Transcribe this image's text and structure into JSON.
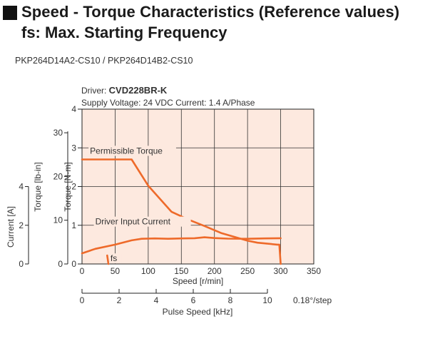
{
  "header": {
    "title": "Speed - Torque Characteristics (Reference values)",
    "subtitle": "fs: Max. Starting Frequency"
  },
  "model": "PKP264D14A2-CS10 / PKP264D14B2-CS10",
  "chart_data": {
    "type": "line",
    "driver_label": "Driver: ",
    "driver_name": "CVD228BR-K",
    "supply": "Supply Voltage: 24 VDC  Current: 1.4 A/Phase",
    "x": {
      "label": "Speed [r/min]",
      "range": [
        0,
        350
      ],
      "ticks": [
        0,
        50,
        100,
        150,
        200,
        250,
        300,
        350
      ]
    },
    "x2": {
      "label": "Pulse Speed [kHz]",
      "range": [
        0,
        12.5
      ],
      "ticks": [
        0,
        2,
        4,
        6,
        8,
        10
      ],
      "step_note": "0.18°/step"
    },
    "y_nm": {
      "label": "Torque [N·m]",
      "range": [
        0,
        4
      ],
      "ticks": [
        0,
        1,
        2,
        3,
        4
      ]
    },
    "y_lbin": {
      "label": "Torque [lb-in]",
      "range": [
        0,
        35.4
      ],
      "ticks": [
        0,
        10,
        20,
        30
      ]
    },
    "y_current": {
      "label": "Current [A]",
      "range": [
        0,
        8
      ],
      "ticks": [
        0,
        2,
        4
      ]
    },
    "grid": true,
    "colors": {
      "plot_bg": "#fde9df",
      "series": "#ee6a2a",
      "grid": "#333333"
    },
    "series": [
      {
        "name": "Permissible Torque",
        "axis": "y_nm",
        "points": [
          [
            0,
            2.7
          ],
          [
            75,
            2.7
          ],
          [
            100,
            2.02
          ],
          [
            135,
            1.35
          ],
          [
            160,
            1.15
          ],
          [
            185,
            0.98
          ],
          [
            210,
            0.8
          ],
          [
            250,
            0.6
          ],
          [
            265,
            0.55
          ],
          [
            295,
            0.5
          ],
          [
            298,
            0.5
          ],
          [
            300,
            0
          ]
        ]
      },
      {
        "name": "Driver Input Current",
        "axis": "y_current",
        "points": [
          [
            0,
            0.55
          ],
          [
            20,
            0.78
          ],
          [
            50,
            1.0
          ],
          [
            75,
            1.22
          ],
          [
            90,
            1.3
          ],
          [
            110,
            1.32
          ],
          [
            130,
            1.3
          ],
          [
            150,
            1.32
          ],
          [
            170,
            1.33
          ],
          [
            185,
            1.38
          ],
          [
            200,
            1.34
          ],
          [
            220,
            1.31
          ],
          [
            250,
            1.3
          ],
          [
            275,
            1.32
          ],
          [
            300,
            1.33
          ]
        ]
      },
      {
        "name": "fs",
        "axis": "y_nm",
        "points": [
          [
            38,
            0.22
          ],
          [
            40,
            0
          ]
        ]
      }
    ]
  }
}
